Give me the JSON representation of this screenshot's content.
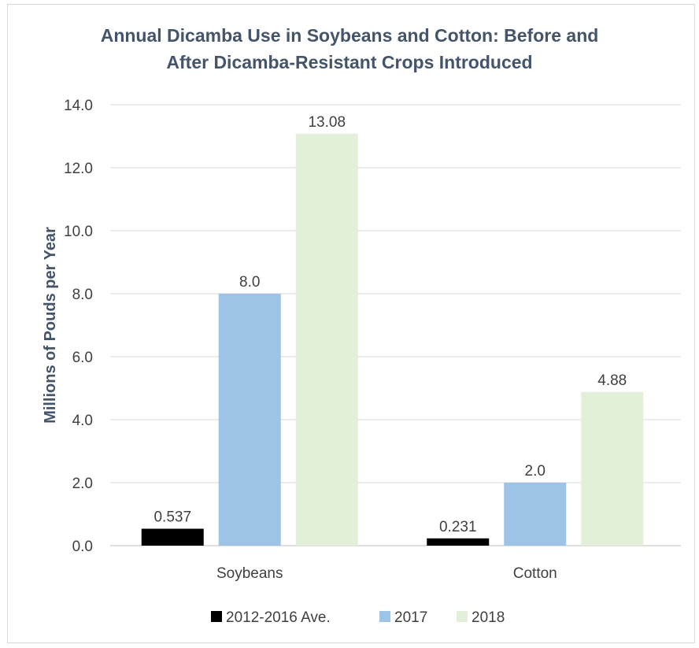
{
  "chart_data": {
    "type": "bar",
    "title_lines": [
      "Annual Dicamba Use in Soybeans and Cotton: Before and",
      "After Dicamba-Resistant Crops Introduced"
    ],
    "xlabel": "",
    "ylabel": "Millions of Pouds per Year",
    "ylim": [
      0,
      14
    ],
    "yticks": [
      "0.0",
      "2.0",
      "4.0",
      "6.0",
      "8.0",
      "10.0",
      "12.0",
      "14.0"
    ],
    "grid": true,
    "legend_position": "bottom",
    "categories": [
      "Soybeans",
      "Cotton"
    ],
    "series": [
      {
        "name": "2012-2016 Ave.",
        "color": "#000000",
        "values": [
          0.537,
          0.231
        ],
        "labels": [
          "0.537",
          "0.231"
        ]
      },
      {
        "name": "2017",
        "color": "#9dc3e6",
        "values": [
          8.0,
          2.0
        ],
        "labels": [
          "8.0",
          "2.0"
        ]
      },
      {
        "name": "2018",
        "color": "#e2efd9",
        "values": [
          13.08,
          4.88
        ],
        "labels": [
          "13.08",
          "4.88"
        ]
      }
    ]
  }
}
